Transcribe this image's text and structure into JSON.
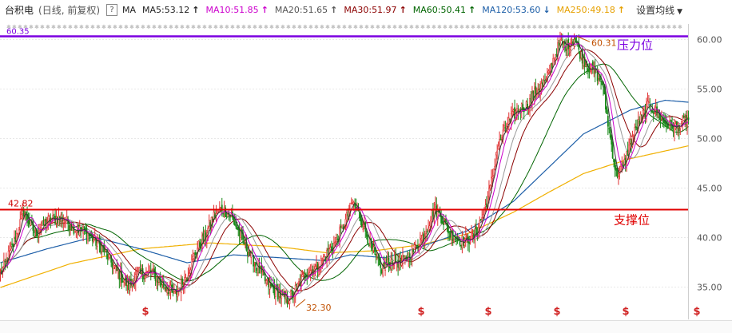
{
  "header": {
    "stock_name": "台积电",
    "period_label": "(日线, 前复权)",
    "help_glyph": "?",
    "ma_label": "MA",
    "settings_label": "设置均线",
    "ma_lines": [
      {
        "text": "MA5:53.12",
        "color": "#222222",
        "arrow": "↑",
        "arrow_color": "#222222"
      },
      {
        "text": "MA10:51.85",
        "color": "#cc00cc",
        "arrow": "↑",
        "arrow_color": "#cc00cc"
      },
      {
        "text": "MA20:51.65",
        "color": "#555555",
        "arrow": "↑",
        "arrow_color": "#555555"
      },
      {
        "text": "MA30:51.97",
        "color": "#8b0000",
        "arrow": "↑",
        "arrow_color": "#8b0000"
      },
      {
        "text": "MA60:50.41",
        "color": "#006400",
        "arrow": "↑",
        "arrow_color": "#006400"
      },
      {
        "text": "MA120:53.60",
        "color": "#1e5fa8",
        "arrow": "↓",
        "arrow_color": "#1e5fa8"
      },
      {
        "text": "MA250:49.18",
        "color": "#e6a000",
        "arrow": "↑",
        "arrow_color": "#e6a000"
      }
    ]
  },
  "chart_data": {
    "type": "candlestick",
    "y_axis": {
      "min": 32.0,
      "max": 61.5,
      "ticks": [
        "35.00",
        "40.00",
        "45.00",
        "50.00",
        "55.00",
        "60.00"
      ]
    },
    "resistance_line": {
      "value": 60.3,
      "color": "#7b00e0",
      "label": "压力位",
      "label_color": "#7b00e0",
      "left_value_label": "60.35"
    },
    "support_line": {
      "value": 42.82,
      "color": "#e00000",
      "label": "支撑位",
      "label_color": "#e00000",
      "left_value_label": "42.82"
    },
    "annotations": [
      {
        "text": "60.31",
        "kind": "high"
      },
      {
        "text": "32.30",
        "kind": "low"
      }
    ],
    "event_marker": "$",
    "event_count": 6,
    "colors": {
      "up": "#e03030",
      "down": "#1a8a1a",
      "ma5": "#333333",
      "ma10": "#cc00cc",
      "ma20": "#999999",
      "ma30": "#8b0000",
      "ma60": "#006400",
      "ma120": "#1e5fa8",
      "ma250": "#f0b000"
    },
    "close_path": [
      [
        0,
        36.2
      ],
      [
        12,
        39.5
      ],
      [
        20,
        42.6
      ],
      [
        30,
        40.3
      ],
      [
        40,
        41.6
      ],
      [
        52,
        42.0
      ],
      [
        62,
        41.0
      ],
      [
        75,
        40.3
      ],
      [
        88,
        38.8
      ],
      [
        100,
        36.5
      ],
      [
        110,
        35.0
      ],
      [
        118,
        36.3
      ],
      [
        130,
        36.4
      ],
      [
        140,
        35.1
      ],
      [
        150,
        34.2
      ],
      [
        160,
        36.2
      ],
      [
        168,
        38.7
      ],
      [
        176,
        40.2
      ],
      [
        182,
        42.0
      ],
      [
        190,
        42.9
      ],
      [
        198,
        42.1
      ],
      [
        208,
        39.6
      ],
      [
        218,
        37.4
      ],
      [
        228,
        35.4
      ],
      [
        238,
        34.3
      ],
      [
        246,
        33.6
      ],
      [
        252,
        34.5
      ],
      [
        262,
        36.4
      ],
      [
        272,
        37.0
      ],
      [
        280,
        38.3
      ],
      [
        288,
        39.6
      ],
      [
        296,
        41.6
      ],
      [
        302,
        43.5
      ],
      [
        308,
        42.2
      ],
      [
        316,
        39.6
      ],
      [
        326,
        36.7
      ],
      [
        336,
        37.6
      ],
      [
        344,
        37.4
      ],
      [
        354,
        38.6
      ],
      [
        364,
        40.3
      ],
      [
        372,
        42.9
      ],
      [
        378,
        42.0
      ],
      [
        386,
        40.3
      ],
      [
        396,
        39.6
      ],
      [
        406,
        40.0
      ],
      [
        414,
        42.3
      ],
      [
        420,
        44.9
      ],
      [
        426,
        48.9
      ],
      [
        434,
        51.3
      ],
      [
        444,
        52.9
      ],
      [
        452,
        53.3
      ],
      [
        460,
        54.8
      ],
      [
        468,
        55.7
      ],
      [
        474,
        57.9
      ],
      [
        480,
        59.6
      ],
      [
        486,
        59.3
      ],
      [
        492,
        60.1
      ],
      [
        498,
        58.3
      ],
      [
        504,
        57.2
      ],
      [
        510,
        56.6
      ],
      [
        516,
        55.6
      ],
      [
        520,
        52.3
      ],
      [
        524,
        49.3
      ],
      [
        528,
        46.3
      ],
      [
        534,
        47.0
      ],
      [
        540,
        49.5
      ],
      [
        548,
        51.7
      ],
      [
        556,
        53.3
      ],
      [
        562,
        52.6
      ],
      [
        570,
        51.5
      ],
      [
        578,
        51.0
      ],
      [
        586,
        51.6
      ],
      [
        590,
        51.9
      ]
    ],
    "ma_offsets": {
      "ma5": 0.35,
      "ma10": 0.6,
      "ma20": 1.0,
      "ma30": 1.3,
      "ma60": 1.8
    },
    "ma120_path": [
      [
        0,
        37.4
      ],
      [
        40,
        38.8
      ],
      [
        80,
        40.0
      ],
      [
        120,
        38.8
      ],
      [
        160,
        37.4
      ],
      [
        200,
        38.2
      ],
      [
        240,
        37.9
      ],
      [
        280,
        37.6
      ],
      [
        300,
        38.2
      ],
      [
        330,
        37.9
      ],
      [
        360,
        39.0
      ],
      [
        400,
        40.6
      ],
      [
        440,
        43.6
      ],
      [
        470,
        47.0
      ],
      [
        500,
        50.4
      ],
      [
        540,
        52.8
      ],
      [
        570,
        53.8
      ],
      [
        590,
        53.6
      ]
    ],
    "ma250_path": [
      [
        0,
        34.9
      ],
      [
        60,
        37.3
      ],
      [
        120,
        38.8
      ],
      [
        180,
        39.4
      ],
      [
        240,
        39.0
      ],
      [
        280,
        38.4
      ],
      [
        320,
        38.6
      ],
      [
        360,
        39.2
      ],
      [
        400,
        40.3
      ],
      [
        440,
        42.5
      ],
      [
        470,
        44.5
      ],
      [
        500,
        46.4
      ],
      [
        540,
        47.9
      ],
      [
        590,
        49.2
      ]
    ]
  }
}
